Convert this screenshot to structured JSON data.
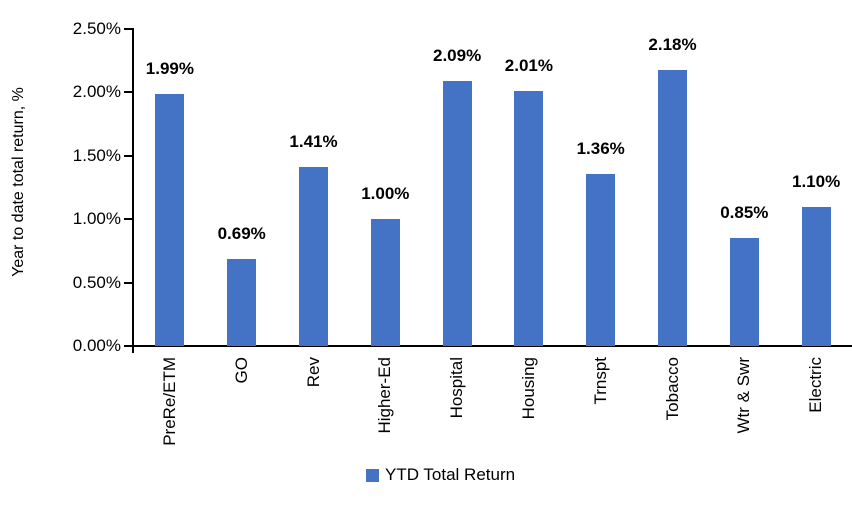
{
  "chart_data": {
    "type": "bar",
    "title": "",
    "xlabel": "",
    "ylabel": "Year to date total return, %",
    "categories": [
      "PreRe/ETM",
      "GO",
      "Rev",
      "Higher-Ed",
      "Hospital",
      "Housing",
      "Trnspt",
      "Tobacco",
      "Wtr & Swr",
      "Electric"
    ],
    "series": [
      {
        "name": "YTD Total Return",
        "values": [
          1.99,
          0.69,
          1.41,
          1.0,
          2.09,
          2.01,
          1.36,
          2.18,
          0.85,
          1.1
        ],
        "color": "#4472C4"
      }
    ],
    "data_labels": [
      "1.99%",
      "0.69%",
      "1.41%",
      "1.00%",
      "2.09%",
      "2.01%",
      "1.36%",
      "2.18%",
      "0.85%",
      "1.10%"
    ],
    "y_ticks": [
      "0.00%",
      "0.50%",
      "1.00%",
      "1.50%",
      "2.00%",
      "2.50%"
    ],
    "ylim": [
      0,
      2.5
    ],
    "y_tick_step": 0.5,
    "grid": false,
    "legend_position": "bottom"
  },
  "legend": {
    "label": "YTD Total Return",
    "color": "#4472C4"
  },
  "colors": {
    "bar": "#4472C4",
    "axis": "#000000",
    "text": "#000000",
    "background": "#ffffff"
  }
}
